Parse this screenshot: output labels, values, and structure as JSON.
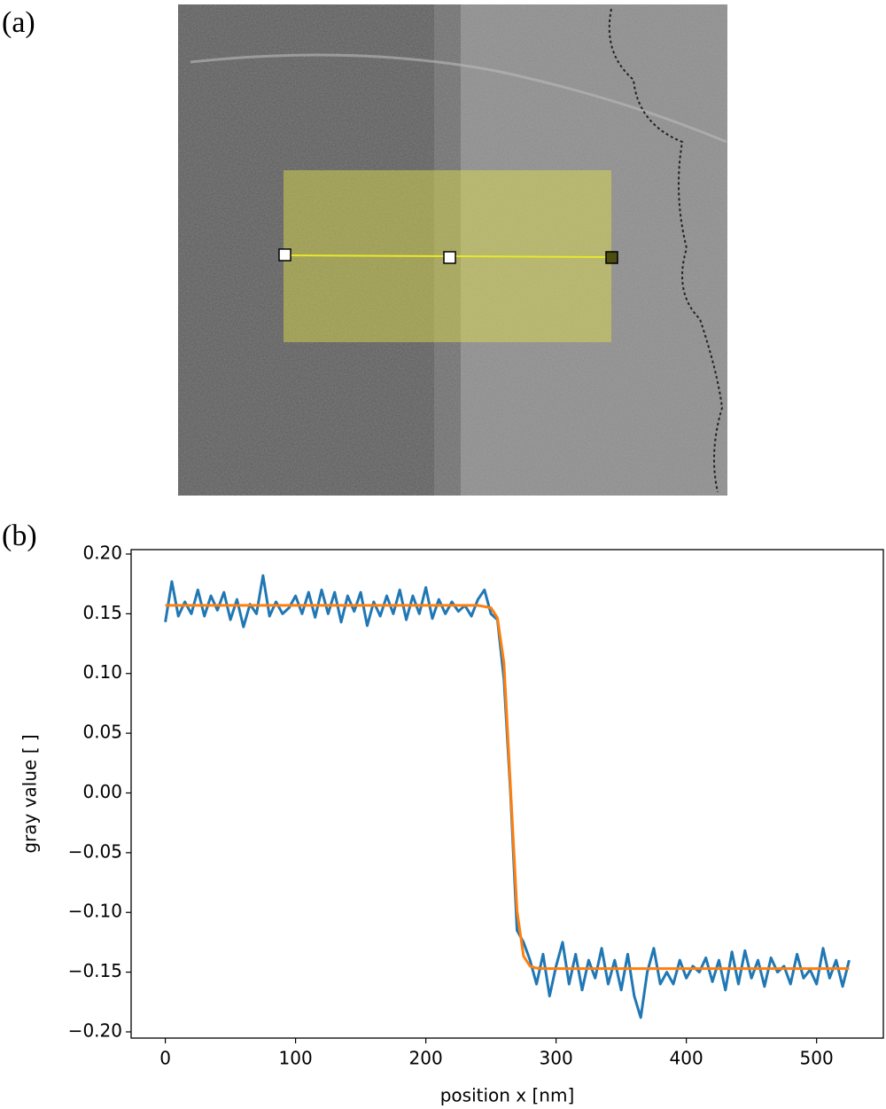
{
  "panel_a": {
    "label": "(a)"
  },
  "chart_data": {
    "type": "line",
    "label": "(b)",
    "x_label": "position x [nm]",
    "y_label": "gray value [ ]",
    "x": [
      0,
      5,
      10,
      15,
      20,
      25,
      30,
      35,
      40,
      45,
      50,
      55,
      60,
      65,
      70,
      75,
      80,
      85,
      90,
      95,
      100,
      105,
      110,
      115,
      120,
      125,
      130,
      135,
      140,
      145,
      150,
      155,
      160,
      165,
      170,
      175,
      180,
      185,
      190,
      195,
      200,
      205,
      210,
      215,
      220,
      225,
      230,
      235,
      240,
      245,
      250,
      255,
      260,
      265,
      270,
      275,
      280,
      285,
      290,
      295,
      300,
      305,
      310,
      315,
      320,
      325,
      330,
      335,
      340,
      345,
      350,
      355,
      360,
      365,
      370,
      375,
      380,
      385,
      390,
      395,
      400,
      405,
      410,
      415,
      420,
      425,
      430,
      435,
      440,
      445,
      450,
      455,
      460,
      465,
      470,
      475,
      480,
      485,
      490,
      495,
      500,
      505,
      510,
      515,
      520,
      525
    ],
    "series": [
      {
        "color": "#1f77b4",
        "values": [
          0.143,
          0.177,
          0.148,
          0.16,
          0.15,
          0.17,
          0.148,
          0.165,
          0.153,
          0.168,
          0.145,
          0.162,
          0.139,
          0.158,
          0.15,
          0.182,
          0.148,
          0.16,
          0.15,
          0.155,
          0.165,
          0.15,
          0.168,
          0.147,
          0.17,
          0.15,
          0.168,
          0.143,
          0.165,
          0.152,
          0.168,
          0.14,
          0.16,
          0.148,
          0.165,
          0.15,
          0.17,
          0.145,
          0.165,
          0.15,
          0.172,
          0.146,
          0.162,
          0.15,
          0.16,
          0.152,
          0.157,
          0.148,
          0.162,
          0.17,
          0.15,
          0.145,
          0.095,
          0.0,
          -0.115,
          -0.125,
          -0.14,
          -0.16,
          -0.135,
          -0.17,
          -0.145,
          -0.125,
          -0.16,
          -0.135,
          -0.165,
          -0.14,
          -0.155,
          -0.13,
          -0.16,
          -0.14,
          -0.165,
          -0.135,
          -0.17,
          -0.188,
          -0.15,
          -0.13,
          -0.16,
          -0.15,
          -0.16,
          -0.14,
          -0.155,
          -0.145,
          -0.15,
          -0.138,
          -0.158,
          -0.14,
          -0.165,
          -0.133,
          -0.16,
          -0.132,
          -0.155,
          -0.14,
          -0.162,
          -0.138,
          -0.15,
          -0.145,
          -0.16,
          -0.135,
          -0.155,
          -0.148,
          -0.16,
          -0.13,
          -0.155,
          -0.14,
          -0.162,
          -0.14
        ]
      },
      {
        "color": "#ff7f0e",
        "values": [
          0.157,
          0.157,
          0.157,
          0.157,
          0.157,
          0.157,
          0.157,
          0.157,
          0.157,
          0.157,
          0.157,
          0.157,
          0.157,
          0.157,
          0.157,
          0.157,
          0.157,
          0.157,
          0.157,
          0.157,
          0.157,
          0.157,
          0.157,
          0.157,
          0.157,
          0.157,
          0.157,
          0.157,
          0.157,
          0.157,
          0.157,
          0.157,
          0.157,
          0.157,
          0.157,
          0.157,
          0.157,
          0.157,
          0.157,
          0.157,
          0.157,
          0.157,
          0.157,
          0.157,
          0.157,
          0.157,
          0.157,
          0.157,
          0.157,
          0.156,
          0.155,
          0.1465,
          0.1087,
          0.005,
          -0.0987,
          -0.1365,
          -0.145,
          -0.1466,
          -0.147,
          -0.147,
          -0.147,
          -0.147,
          -0.147,
          -0.147,
          -0.147,
          -0.147,
          -0.147,
          -0.147,
          -0.147,
          -0.147,
          -0.147,
          -0.147,
          -0.147,
          -0.147,
          -0.147,
          -0.147,
          -0.147,
          -0.147,
          -0.147,
          -0.147,
          -0.147,
          -0.147,
          -0.147,
          -0.147,
          -0.147,
          -0.147,
          -0.147,
          -0.147,
          -0.147,
          -0.147,
          -0.147,
          -0.147,
          -0.147,
          -0.147,
          -0.147,
          -0.147,
          -0.147,
          -0.147,
          -0.147,
          -0.147,
          -0.147,
          -0.147,
          -0.147,
          -0.147,
          -0.147,
          -0.147
        ]
      }
    ],
    "xlim": [
      -26.25,
      551.25
    ],
    "xticks": [
      0,
      100,
      200,
      300,
      400,
      500
    ],
    "ylim": [
      -0.2052,
      0.2037
    ],
    "yticks": [
      {
        "value": -0.2,
        "label": "−0.20"
      },
      {
        "value": -0.15,
        "label": "−0.15"
      },
      {
        "value": -0.1,
        "label": "−0.10"
      },
      {
        "value": -0.05,
        "label": "−0.05"
      },
      {
        "value": 0,
        "label": "0.00"
      },
      {
        "value": 0.05,
        "label": "0.05"
      },
      {
        "value": 0.1,
        "label": "0.10"
      },
      {
        "value": 0.15,
        "label": "0.15"
      },
      {
        "value": 0.2,
        "label": "0.20"
      }
    ],
    "grid": false
  }
}
